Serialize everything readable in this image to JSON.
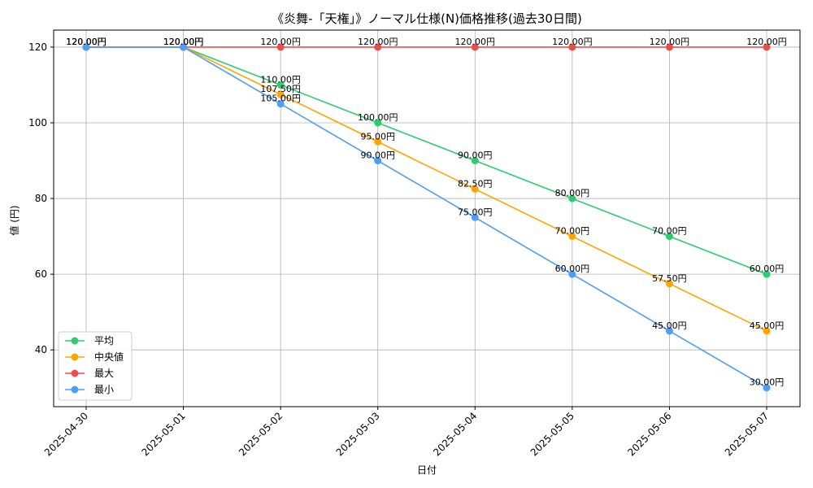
{
  "chart_data": {
    "type": "line",
    "title": "《炎舞-「天権」》ノーマル仕様(N)価格推移(過去30日間)",
    "xlabel": "日付",
    "ylabel": "値 (円)",
    "categories": [
      "2025-04-30",
      "2025-05-01",
      "2025-05-02",
      "2025-05-03",
      "2025-05-04",
      "2025-05-05",
      "2025-05-06",
      "2025-05-07"
    ],
    "ylim": [
      25,
      124.5
    ],
    "yticks": [
      40,
      60,
      80,
      100,
      120
    ],
    "grid": true,
    "legend_position": "lower-left",
    "series": [
      {
        "name": "平均",
        "color": "#2ecc71",
        "values": [
          120,
          120,
          110,
          100,
          90,
          80,
          70,
          60
        ],
        "labels": [
          "120.00円",
          "120.00円",
          "110.00円",
          "100.00円",
          "90.00円",
          "80.00円",
          "70.00円",
          "60.00円"
        ]
      },
      {
        "name": "中央値",
        "color": "#ffa500",
        "values": [
          120,
          120,
          107.5,
          95,
          82.5,
          70,
          57.5,
          45
        ],
        "labels": [
          "120.00円",
          "120.00円",
          "107.50円",
          "95.00円",
          "82.50円",
          "70.00円",
          "57.50円",
          "45.00円"
        ]
      },
      {
        "name": "最大",
        "color": "#f04b4b",
        "values": [
          120,
          120,
          120,
          120,
          120,
          120,
          120,
          120
        ],
        "labels": [
          "120.00円",
          "120.00円",
          "120.00円",
          "120.00円",
          "120.00円",
          "120.00円",
          "120.00円",
          "120.00円"
        ]
      },
      {
        "name": "最小",
        "color": "#4d9ef7",
        "values": [
          120,
          120,
          105,
          90,
          75,
          60,
          45,
          30
        ],
        "labels": [
          "120.00円",
          "120.00円",
          "105.00円",
          "90.00円",
          "75.00円",
          "60.00円",
          "45.00円",
          "30.00円"
        ]
      }
    ]
  }
}
